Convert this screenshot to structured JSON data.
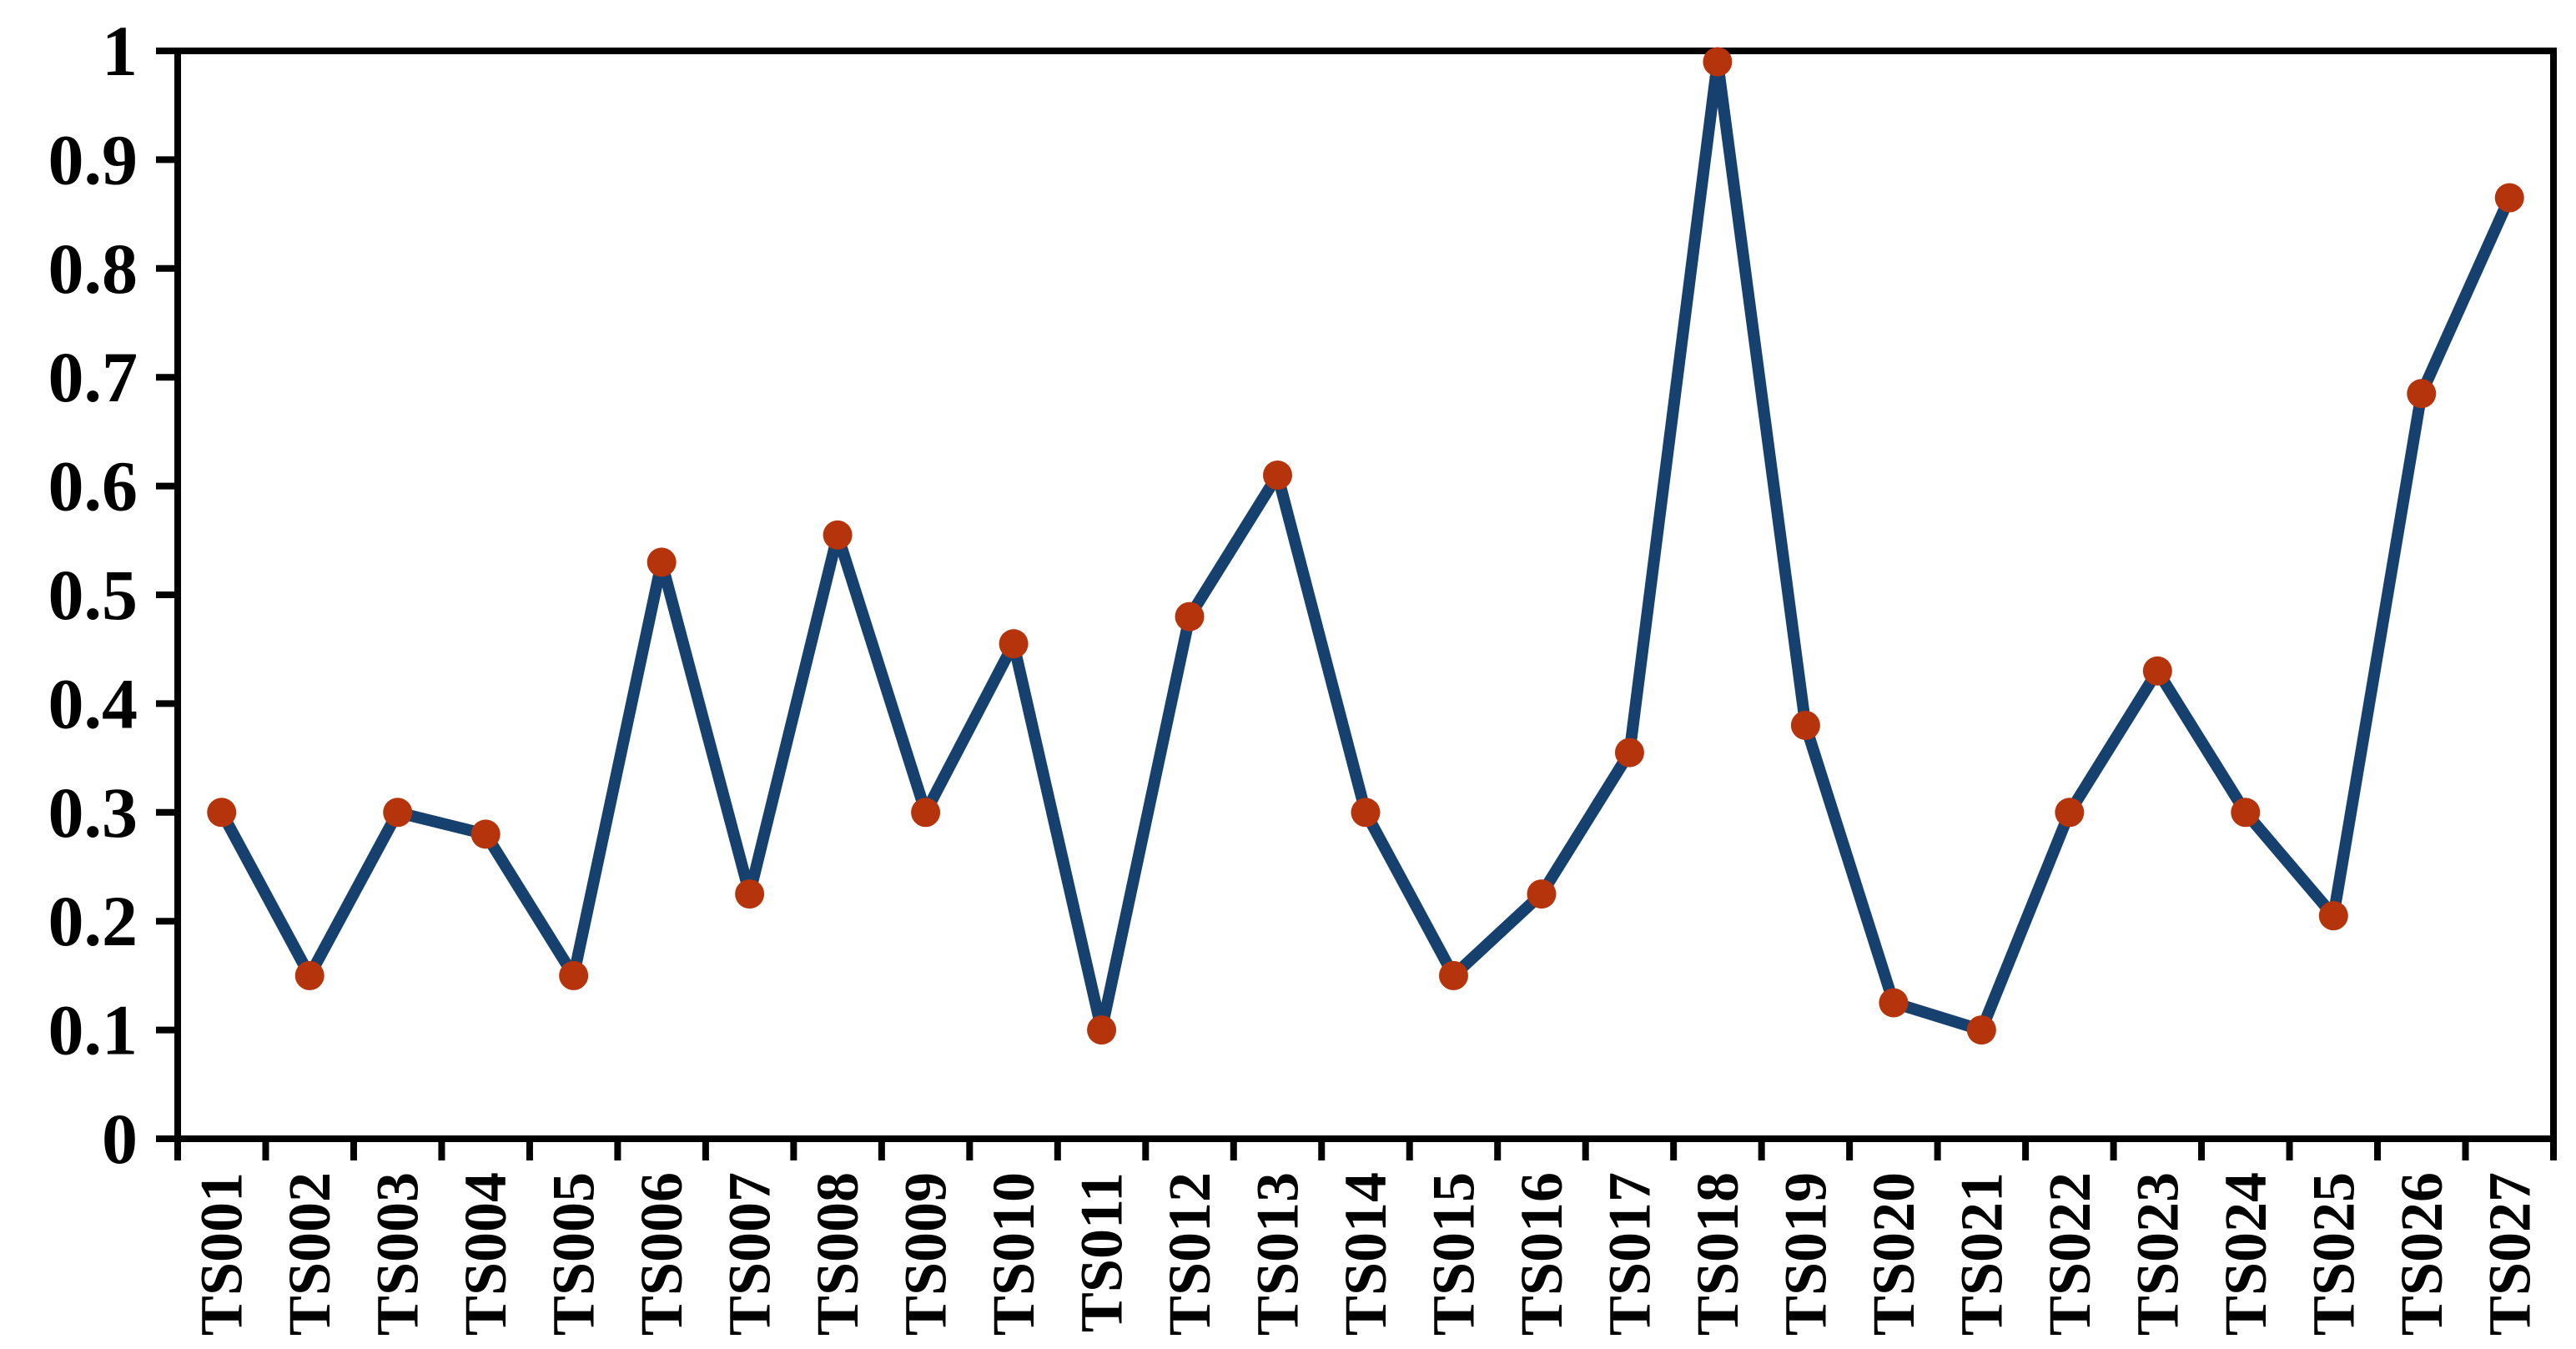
{
  "figure": {
    "background": "#FFFFFF"
  },
  "chart_data": {
    "type": "line",
    "title": "",
    "xlabel": "",
    "ylabel": "",
    "categories": [
      "TS001",
      "TS002",
      "TS003",
      "TS004",
      "TS005",
      "TS006",
      "TS007",
      "TS008",
      "TS009",
      "TS010",
      "TS011",
      "TS012",
      "TS013",
      "TS014",
      "TS015",
      "TS016",
      "TS017",
      "TS018",
      "TS019",
      "TS020",
      "TS021",
      "TS022",
      "TS023",
      "TS024",
      "TS025",
      "TS026",
      "TS027"
    ],
    "values": [
      0.3,
      0.15,
      0.3,
      0.28,
      0.15,
      0.53,
      0.225,
      0.555,
      0.3,
      0.455,
      0.1,
      0.48,
      0.61,
      0.3,
      0.15,
      0.225,
      0.355,
      0.99,
      0.38,
      0.125,
      0.1,
      0.3,
      0.43,
      0.3,
      0.205,
      0.685,
      0.865
    ],
    "ylim": [
      0,
      1
    ],
    "y_ticks": {
      "values": [
        0,
        0.1,
        0.2,
        0.3,
        0.4,
        0.5,
        0.6,
        0.7,
        0.8,
        0.9,
        1
      ],
      "labels": [
        "0",
        "0.1",
        "0.2",
        "0.3",
        "0.4",
        "0.5",
        "0.6",
        "0.7",
        "0.8",
        "0.9",
        "1"
      ]
    },
    "grid": false,
    "legend": false,
    "colors": {
      "line": "#16406E",
      "marker": "#B5340C",
      "axis": "#000000",
      "text": "#000000"
    }
  }
}
